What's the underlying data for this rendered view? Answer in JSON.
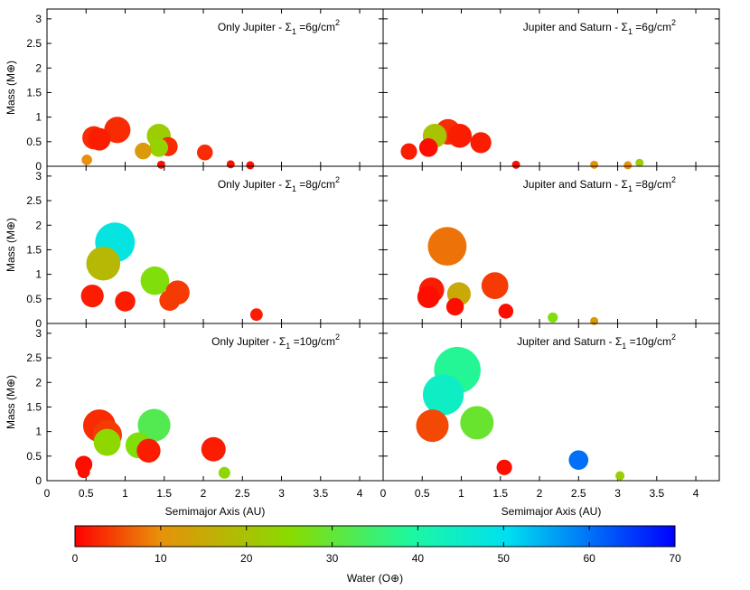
{
  "chart_data": {
    "type": "scatter",
    "layout": "3x2 grid of panels sharing x and y axes",
    "ylabel": "Mass (M⊕)",
    "xlabel": "Semimajor Axis (AU)",
    "xlim": [
      0,
      4.3
    ],
    "ylim": [
      0,
      3.2
    ],
    "xticks": [
      "0",
      "0.5",
      "1",
      "1.5",
      "2",
      "2.5",
      "3",
      "3.5",
      "4"
    ],
    "yticks": [
      "0",
      "0.5",
      "1",
      "1.5",
      "2",
      "2.5",
      "3"
    ],
    "size_encodes": "mass",
    "color_encodes": "water content",
    "colorbar": {
      "label": "Water (O⊕)",
      "range": [
        0,
        70
      ],
      "ticks": [
        "0",
        "10",
        "20",
        "30",
        "40",
        "50",
        "60",
        "70"
      ],
      "colors": [
        "#ff0000",
        "#e8900a",
        "#88dc00",
        "#1cf8a0",
        "#00e0f0",
        "#0000ff"
      ]
    },
    "panels": [
      {
        "title_prefix": "Only Jupiter - ",
        "title_value": " =6g/cm",
        "title_exp": "2",
        "points": [
          {
            "x": 0.51,
            "y": 0.13,
            "water": 10
          },
          {
            "x": 0.6,
            "y": 0.58,
            "water": 3
          },
          {
            "x": 0.67,
            "y": 0.55,
            "water": 2
          },
          {
            "x": 0.9,
            "y": 0.74,
            "water": 3
          },
          {
            "x": 1.23,
            "y": 0.31,
            "water": 12
          },
          {
            "x": 1.43,
            "y": 0.62,
            "water": 22
          },
          {
            "x": 1.43,
            "y": 0.38,
            "water": 23
          },
          {
            "x": 1.46,
            "y": 0.03,
            "water": 1
          },
          {
            "x": 1.55,
            "y": 0.4,
            "water": 3
          },
          {
            "x": 2.02,
            "y": 0.28,
            "water": 3
          },
          {
            "x": 2.35,
            "y": 0.04,
            "water": 1
          },
          {
            "x": 2.6,
            "y": 0.02,
            "water": 1
          }
        ]
      },
      {
        "title_prefix": "Jupiter and Saturn - ",
        "title_value": " =6g/cm",
        "title_exp": "2",
        "points": [
          {
            "x": 0.33,
            "y": 0.3,
            "water": 2
          },
          {
            "x": 0.58,
            "y": 0.38,
            "water": 1
          },
          {
            "x": 0.66,
            "y": 0.62,
            "water": 20
          },
          {
            "x": 0.83,
            "y": 0.7,
            "water": 3
          },
          {
            "x": 0.98,
            "y": 0.62,
            "water": 2
          },
          {
            "x": 1.25,
            "y": 0.48,
            "water": 2
          },
          {
            "x": 1.7,
            "y": 0.03,
            "water": 1
          },
          {
            "x": 2.7,
            "y": 0.03,
            "water": 10
          },
          {
            "x": 3.13,
            "y": 0.02,
            "water": 10
          },
          {
            "x": 3.28,
            "y": 0.07,
            "water": 22
          }
        ]
      },
      {
        "title_prefix": "Only Jupiter - ",
        "title_value": " =8g/cm",
        "title_exp": "2",
        "points": [
          {
            "x": 0.58,
            "y": 0.56,
            "water": 2
          },
          {
            "x": 0.72,
            "y": 1.22,
            "water": 18
          },
          {
            "x": 0.87,
            "y": 1.65,
            "water": 48
          },
          {
            "x": 1.0,
            "y": 0.45,
            "water": 2
          },
          {
            "x": 1.38,
            "y": 0.87,
            "water": 26
          },
          {
            "x": 1.57,
            "y": 0.47,
            "water": 4
          },
          {
            "x": 1.67,
            "y": 0.63,
            "water": 4
          },
          {
            "x": 2.68,
            "y": 0.18,
            "water": 2
          }
        ]
      },
      {
        "title_prefix": "Jupiter and Saturn - ",
        "title_value": " =8g/cm",
        "title_exp": "2",
        "points": [
          {
            "x": 0.58,
            "y": 0.54,
            "water": 1
          },
          {
            "x": 0.62,
            "y": 0.68,
            "water": 2
          },
          {
            "x": 0.82,
            "y": 1.57,
            "water": 8
          },
          {
            "x": 0.92,
            "y": 0.34,
            "water": 1
          },
          {
            "x": 0.97,
            "y": 0.6,
            "water": 15
          },
          {
            "x": 1.43,
            "y": 0.77,
            "water": 4
          },
          {
            "x": 1.57,
            "y": 0.25,
            "water": 1
          },
          {
            "x": 2.17,
            "y": 0.12,
            "water": 26
          },
          {
            "x": 2.7,
            "y": 0.05,
            "water": 12
          }
        ]
      },
      {
        "title_prefix": "Only Jupiter - ",
        "title_value": " =10g/cm",
        "title_exp": "2",
        "points": [
          {
            "x": 0.47,
            "y": 0.33,
            "water": 1
          },
          {
            "x": 0.47,
            "y": 0.18,
            "water": 1
          },
          {
            "x": 0.67,
            "y": 1.12,
            "water": 3
          },
          {
            "x": 0.77,
            "y": 0.93,
            "water": 4
          },
          {
            "x": 0.77,
            "y": 0.78,
            "water": 24
          },
          {
            "x": 1.17,
            "y": 0.72,
            "water": 26
          },
          {
            "x": 1.3,
            "y": 0.61,
            "water": 2
          },
          {
            "x": 1.37,
            "y": 1.13,
            "water": 32
          },
          {
            "x": 2.13,
            "y": 0.64,
            "water": 2
          },
          {
            "x": 2.27,
            "y": 0.16,
            "water": 24
          }
        ]
      },
      {
        "title_prefix": "Jupiter and Saturn - ",
        "title_value": " =10g/cm",
        "title_exp": "2",
        "points": [
          {
            "x": 0.63,
            "y": 1.12,
            "water": 5
          },
          {
            "x": 0.77,
            "y": 1.75,
            "water": 44
          },
          {
            "x": 0.95,
            "y": 2.25,
            "water": 38
          },
          {
            "x": 1.2,
            "y": 1.18,
            "water": 29
          },
          {
            "x": 1.55,
            "y": 0.27,
            "water": 1
          },
          {
            "x": 2.5,
            "y": 0.42,
            "water": 60
          },
          {
            "x": 3.03,
            "y": 0.1,
            "water": 22
          }
        ]
      }
    ]
  }
}
